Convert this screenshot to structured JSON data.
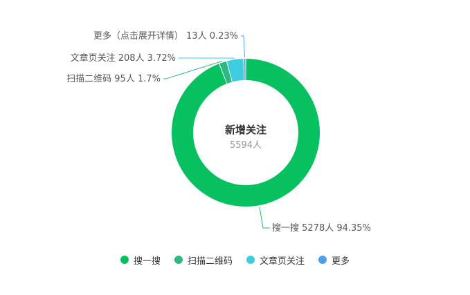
{
  "chart_data": {
    "type": "pie",
    "donut": true,
    "center_title": "新增关注",
    "center_value": "5594人",
    "total": 5594,
    "unit": "人",
    "legend_position": "bottom",
    "slices": [
      {
        "name": "搜一搜",
        "value": 5278,
        "percent": "94.35%",
        "color": "#07c160"
      },
      {
        "name": "扫描二维码",
        "value": 95,
        "percent": "1.7%",
        "color": "#30b883"
      },
      {
        "name": "文章页关注",
        "value": 208,
        "percent": "3.72%",
        "color": "#3ccddf"
      },
      {
        "name": "更多（点击展开详情）",
        "value": 13,
        "percent": "0.23%",
        "color": "#4a9ff0"
      }
    ],
    "labels": [
      "搜一搜 5278人 94.35%",
      "扫描二维码 95人 1.7%",
      "文章页关注 208人 3.72%",
      "更多（点击展开详情） 13人 0.23%"
    ],
    "legend": [
      "搜一搜",
      "扫描二维码",
      "文章页关注",
      "更多"
    ]
  }
}
